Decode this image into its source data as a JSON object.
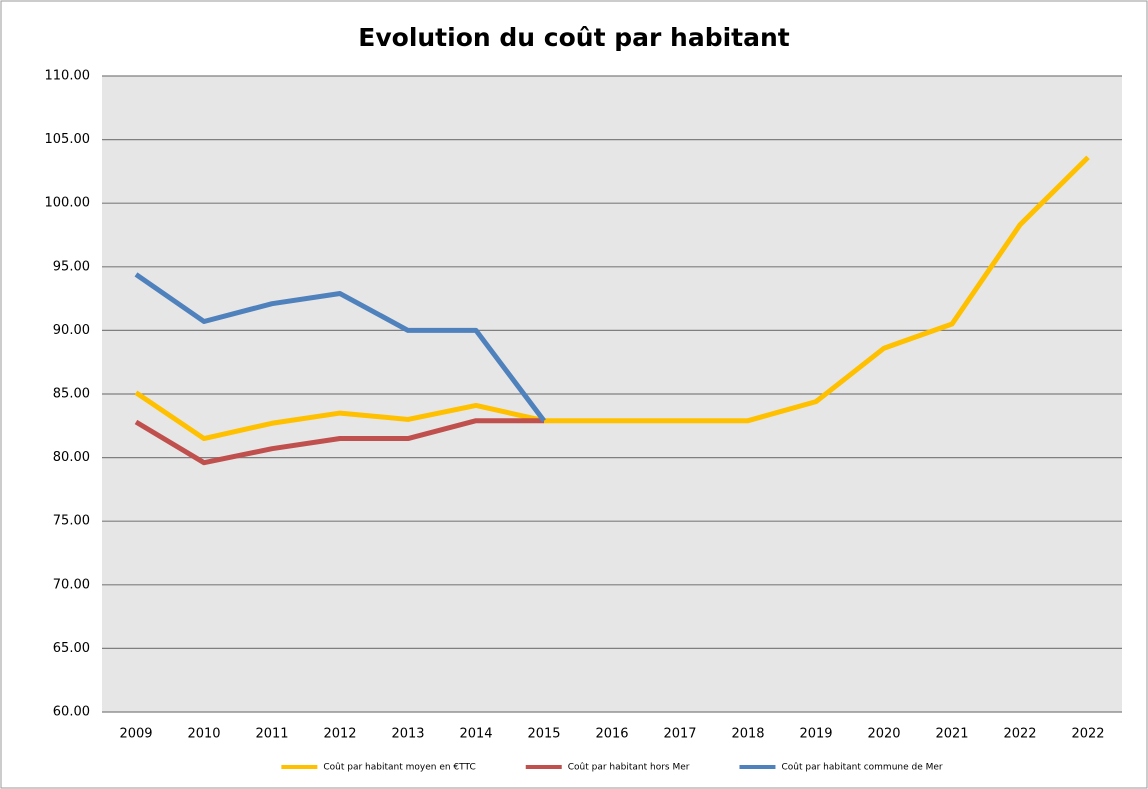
{
  "chart_data": {
    "type": "line",
    "title": "Evolution du coût par habitant",
    "categories": [
      "2009",
      "2010",
      "2011",
      "2012",
      "2013",
      "2014",
      "2015",
      "2016",
      "2017",
      "2018",
      "2019",
      "2020",
      "2021",
      "2022",
      "2022"
    ],
    "series": [
      {
        "name": "Coût par habitant moyen en €TTC",
        "color": "#ffc000",
        "values": [
          85.1,
          81.5,
          82.7,
          83.5,
          83.0,
          84.1,
          82.9,
          82.9,
          82.9,
          82.9,
          84.4,
          88.6,
          90.5,
          98.3,
          103.6
        ]
      },
      {
        "name": "Coût par habitant hors Mer",
        "color": "#c0504d",
        "values": [
          82.8,
          79.6,
          80.7,
          81.5,
          81.5,
          82.9,
          82.9,
          null,
          null,
          null,
          null,
          null,
          null,
          null,
          null
        ]
      },
      {
        "name": "Coût par habitant commune de Mer",
        "color": "#4f81bd",
        "values": [
          94.4,
          90.7,
          92.1,
          92.9,
          90.0,
          90.0,
          82.9,
          null,
          null,
          null,
          null,
          null,
          null,
          null,
          null
        ]
      }
    ],
    "ylim": [
      60,
      110
    ],
    "yticks": [
      {
        "value": 60,
        "label": "60.00"
      },
      {
        "value": 65,
        "label": "65.00"
      },
      {
        "value": 70,
        "label": "70.00"
      },
      {
        "value": 75,
        "label": "75.00"
      },
      {
        "value": 80,
        "label": "80.00"
      },
      {
        "value": 85,
        "label": "85.00"
      },
      {
        "value": 90,
        "label": "90.00"
      },
      {
        "value": 95,
        "label": "95.00"
      },
      {
        "value": 100,
        "label": "100.00"
      },
      {
        "value": 105,
        "label": "105.00"
      },
      {
        "value": 110,
        "label": "110.00"
      }
    ],
    "grid": true,
    "legend": "bottom"
  }
}
